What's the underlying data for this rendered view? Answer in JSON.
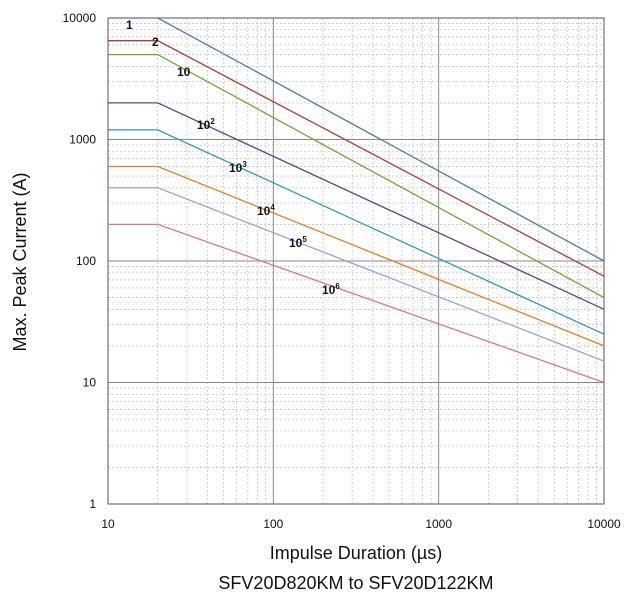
{
  "chart_data": {
    "type": "line",
    "title": "",
    "caption": "SFV20D820KM to SFV20D122KM",
    "xlabel": "Impulse Duration (µs)",
    "ylabel": "Max. Peak Current (A)",
    "xscale": "log",
    "yscale": "log",
    "xlim": [
      10,
      10000
    ],
    "ylim": [
      1,
      10000
    ],
    "x_ticks": [
      "10",
      "100",
      "1000",
      "10000"
    ],
    "y_ticks": [
      "1",
      "10",
      "100",
      "1000",
      "10000"
    ],
    "grid": true,
    "legend": "inline labels",
    "series": [
      {
        "name": "1",
        "base": "1",
        "exp": "",
        "color": "#4a78b0",
        "x": [
          10,
          20,
          10000
        ],
        "y": [
          10000,
          10000,
          100
        ]
      },
      {
        "name": "2",
        "base": "2",
        "exp": "",
        "color": "#b03a3a",
        "x": [
          10,
          20,
          10000
        ],
        "y": [
          6500,
          6500,
          75
        ]
      },
      {
        "name": "10",
        "base": "10",
        "exp": "",
        "color": "#7aa23a",
        "x": [
          10,
          20,
          10000
        ],
        "y": [
          5000,
          5000,
          50
        ]
      },
      {
        "name": "10^2",
        "base": "10",
        "exp": "2",
        "color": "#5e4688",
        "x": [
          10,
          20,
          10000
        ],
        "y": [
          2000,
          2000,
          40
        ]
      },
      {
        "name": "10^3",
        "base": "10",
        "exp": "3",
        "color": "#2f9aad",
        "x": [
          10,
          20,
          10000
        ],
        "y": [
          1200,
          1200,
          25
        ]
      },
      {
        "name": "10^4",
        "base": "10",
        "exp": "4",
        "color": "#e67e22",
        "x": [
          10,
          20,
          10000
        ],
        "y": [
          600,
          600,
          20
        ]
      },
      {
        "name": "10^5",
        "base": "10",
        "exp": "5",
        "color": "#8fa8d8",
        "x": [
          10,
          20,
          10000
        ],
        "y": [
          400,
          400,
          15
        ]
      },
      {
        "name": "10^6",
        "base": "10",
        "exp": "6",
        "color": "#e07878",
        "x": [
          10,
          20,
          10000
        ],
        "y": [
          200,
          200,
          10
        ]
      }
    ]
  }
}
